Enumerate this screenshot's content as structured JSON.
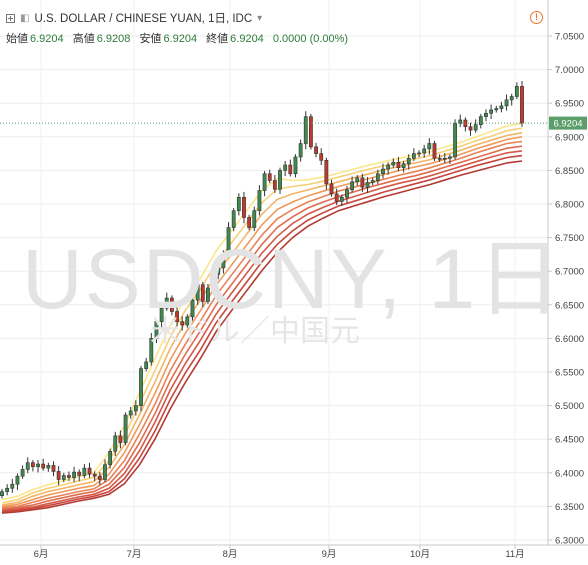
{
  "header": {
    "symbol_title": "U.S. DOLLAR / CHINESE YUAN, 1日, IDC",
    "ohlc": [
      {
        "label": "始値",
        "value": "6.9204"
      },
      {
        "label": "高値",
        "value": "6.9208"
      },
      {
        "label": "安値",
        "value": "6.9204"
      },
      {
        "label": "終値",
        "value": "6.9204"
      }
    ],
    "change": "0.0000 (0.00%)",
    "alert_glyph": "!"
  },
  "watermark": {
    "symbol": "USDCNY, 1日",
    "description": "米ドル／中国元"
  },
  "price_tag": "6.9204",
  "colors": {
    "up": "#3f8a4f",
    "down": "#c0392b",
    "ribbon": [
      "#fbe68a",
      "#f8cf74",
      "#f4b466",
      "#ef9a5c",
      "#e88256",
      "#df6c4f",
      "#d45847",
      "#c6463d",
      "#b33a32"
    ]
  },
  "chart_data": {
    "type": "candlestick",
    "x_ticks": [
      "6月",
      "7月",
      "8月",
      "9月",
      "10月",
      "11月"
    ],
    "y_ticks": [
      "7.0500",
      "7.0000",
      "6.9500",
      "6.9000",
      "6.8500",
      "6.8000",
      "6.7500",
      "6.7000",
      "6.6500",
      "6.6000",
      "6.5500",
      "6.5000",
      "6.4500",
      "6.4000",
      "6.3500",
      "6.3000"
    ],
    "ylim": [
      6.3,
      7.065
    ],
    "last_price": 6.9204,
    "grid": true,
    "legend": "top-left",
    "closes": [
      6.372,
      6.377,
      6.383,
      6.395,
      6.405,
      6.415,
      6.409,
      6.413,
      6.407,
      6.411,
      6.402,
      6.39,
      6.396,
      6.393,
      6.401,
      6.396,
      6.407,
      6.398,
      6.395,
      6.39,
      6.412,
      6.432,
      6.455,
      6.445,
      6.486,
      6.492,
      6.5,
      6.555,
      6.565,
      6.6,
      6.625,
      6.645,
      6.66,
      6.64,
      6.625,
      6.62,
      6.632,
      6.657,
      6.68,
      6.655,
      6.675,
      6.695,
      6.705,
      6.725,
      6.765,
      6.79,
      6.81,
      6.78,
      6.765,
      6.79,
      6.82,
      6.845,
      6.835,
      6.822,
      6.85,
      6.858,
      6.845,
      6.87,
      6.89,
      6.93,
      6.885,
      6.875,
      6.865,
      6.83,
      6.815,
      6.804,
      6.81,
      6.821,
      6.833,
      6.839,
      6.825,
      6.832,
      6.835,
      6.845,
      6.852,
      6.858,
      6.862,
      6.854,
      6.86,
      6.868,
      6.875,
      6.876,
      6.882,
      6.89,
      6.868,
      6.868,
      6.868,
      6.87,
      6.92,
      6.925,
      6.915,
      6.91,
      6.918,
      6.93,
      6.935,
      6.94,
      6.942,
      6.946,
      6.955,
      6.96,
      6.975,
      6.9204
    ],
    "series": [
      {
        "name": "EMA 1",
        "values": [
          6.36,
          6.365,
          6.375,
          6.382,
          6.388,
          6.394,
          6.4,
          6.43,
          6.47,
          6.52,
          6.57,
          6.62,
          6.66,
          6.69,
          6.73,
          6.76,
          6.79,
          6.82,
          6.838,
          6.835,
          6.836,
          6.84,
          6.846,
          6.852,
          6.858,
          6.863,
          6.868,
          6.873,
          6.878,
          6.885,
          6.892,
          6.9,
          6.908,
          6.916,
          6.92
        ]
      },
      {
        "name": "EMA 2",
        "values": [
          6.355,
          6.36,
          6.37,
          6.377,
          6.382,
          6.388,
          6.393,
          6.418,
          6.455,
          6.503,
          6.552,
          6.602,
          6.642,
          6.674,
          6.712,
          6.742,
          6.772,
          6.802,
          6.822,
          6.826,
          6.829,
          6.834,
          6.84,
          6.846,
          6.852,
          6.857,
          6.862,
          6.867,
          6.872,
          6.879,
          6.886,
          6.894,
          6.901,
          6.909,
          6.913
        ]
      },
      {
        "name": "EMA 3",
        "values": [
          6.352,
          6.356,
          6.365,
          6.372,
          6.377,
          6.382,
          6.387,
          6.408,
          6.442,
          6.487,
          6.535,
          6.585,
          6.625,
          6.658,
          6.695,
          6.725,
          6.755,
          6.785,
          6.807,
          6.815,
          6.821,
          6.827,
          6.833,
          6.839,
          6.845,
          6.851,
          6.856,
          6.861,
          6.866,
          6.873,
          6.88,
          6.888,
          6.895,
          6.902,
          6.906
        ]
      },
      {
        "name": "EMA 4",
        "values": [
          6.35,
          6.353,
          6.36,
          6.367,
          6.372,
          6.377,
          6.381,
          6.398,
          6.43,
          6.472,
          6.518,
          6.568,
          6.608,
          6.642,
          6.679,
          6.709,
          6.739,
          6.769,
          6.792,
          6.803,
          6.812,
          6.819,
          6.826,
          6.832,
          6.838,
          6.844,
          6.85,
          6.855,
          6.86,
          6.867,
          6.874,
          6.882,
          6.889,
          6.896,
          6.9
        ]
      },
      {
        "name": "EMA 5",
        "values": [
          6.348,
          6.35,
          6.356,
          6.362,
          6.367,
          6.372,
          6.376,
          6.39,
          6.418,
          6.458,
          6.502,
          6.552,
          6.592,
          6.627,
          6.664,
          6.694,
          6.724,
          6.754,
          6.778,
          6.792,
          6.803,
          6.811,
          6.819,
          6.825,
          6.831,
          6.837,
          6.843,
          6.848,
          6.854,
          6.861,
          6.868,
          6.876,
          6.883,
          6.89,
          6.893
        ]
      },
      {
        "name": "EMA 6",
        "values": [
          6.346,
          6.348,
          6.352,
          6.358,
          6.363,
          6.368,
          6.372,
          6.383,
          6.408,
          6.445,
          6.488,
          6.537,
          6.577,
          6.612,
          6.65,
          6.68,
          6.71,
          6.74,
          6.765,
          6.781,
          6.794,
          6.803,
          6.811,
          6.818,
          6.825,
          6.831,
          6.837,
          6.842,
          6.848,
          6.855,
          6.862,
          6.869,
          6.876,
          6.883,
          6.886
        ]
      },
      {
        "name": "EMA 7",
        "values": [
          6.344,
          6.346,
          6.349,
          6.354,
          6.359,
          6.364,
          6.368,
          6.377,
          6.399,
          6.433,
          6.475,
          6.523,
          6.563,
          6.598,
          6.636,
          6.667,
          6.697,
          6.727,
          6.752,
          6.771,
          6.785,
          6.795,
          6.804,
          6.811,
          6.818,
          6.825,
          6.831,
          6.836,
          6.842,
          6.849,
          6.856,
          6.863,
          6.87,
          6.876,
          6.879
        ]
      },
      {
        "name": "EMA 8",
        "values": [
          6.342,
          6.344,
          6.347,
          6.351,
          6.356,
          6.361,
          6.365,
          6.372,
          6.391,
          6.422,
          6.462,
          6.509,
          6.549,
          6.584,
          6.623,
          6.654,
          6.684,
          6.714,
          6.74,
          6.76,
          6.776,
          6.787,
          6.797,
          6.804,
          6.811,
          6.818,
          6.824,
          6.83,
          6.836,
          6.843,
          6.85,
          6.857,
          6.863,
          6.869,
          6.872
        ]
      },
      {
        "name": "EMA 9",
        "values": [
          6.34,
          6.342,
          6.345,
          6.348,
          6.353,
          6.358,
          6.362,
          6.368,
          6.384,
          6.412,
          6.45,
          6.495,
          6.535,
          6.571,
          6.61,
          6.641,
          6.671,
          6.701,
          6.728,
          6.75,
          6.767,
          6.779,
          6.79,
          6.797,
          6.804,
          6.811,
          6.817,
          6.823,
          6.829,
          6.836,
          6.843,
          6.849,
          6.855,
          6.861,
          6.864
        ]
      }
    ]
  }
}
